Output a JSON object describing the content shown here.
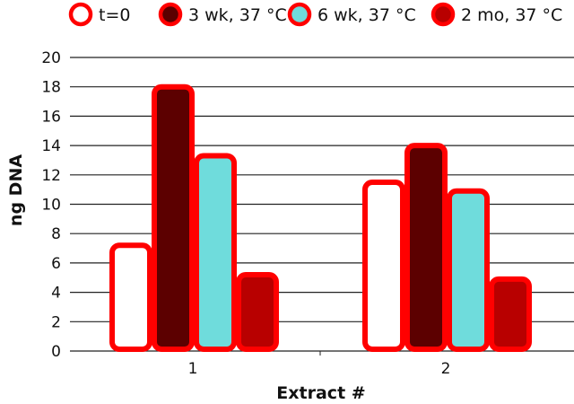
{
  "chart_data": {
    "type": "bar",
    "title": "",
    "xlabel": "Extract #",
    "ylabel": "ng DNA",
    "ylim": [
      0,
      20
    ],
    "yticks": [
      "0",
      "2",
      "4",
      "6",
      "8",
      "10",
      "12",
      "14",
      "16",
      "18",
      "20"
    ],
    "categories": [
      "1",
      "2"
    ],
    "grid": true,
    "legend_position": "top",
    "series": [
      {
        "name": "t=0",
        "values": [
          7.2,
          11.5
        ],
        "fill": "#ffffff",
        "stroke": "#ff0000"
      },
      {
        "name": "3 wk, 37 °C",
        "values": [
          18.0,
          14.0
        ],
        "fill": "#5c0000",
        "stroke": "#ff0000"
      },
      {
        "name": "6 wk, 37 °C",
        "values": [
          13.3,
          10.9
        ],
        "fill": "#6fdcdc",
        "stroke": "#ff0000"
      },
      {
        "name": "2 mo, 37 °C",
        "values": [
          5.2,
          4.9
        ],
        "fill": "#b80000",
        "stroke": "#ff0000"
      }
    ]
  }
}
